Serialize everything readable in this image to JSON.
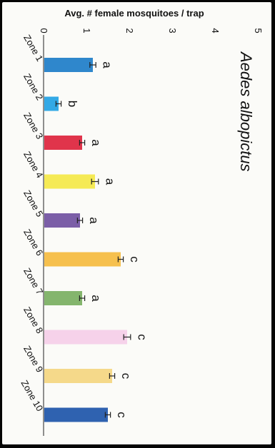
{
  "chart_data": {
    "type": "bar",
    "orientation": "horizontal",
    "title": "Aedes albopictus",
    "ylabel": "Avg. # female mosquitoes / trap",
    "xlabel": "",
    "ylim": [
      0,
      5
    ],
    "y_ticks": [
      "0",
      "1",
      "2",
      "3",
      "4",
      "5"
    ],
    "categories": [
      "Zone 1",
      "Zone 2",
      "Zone 3",
      "Zone 4",
      "Zone 5",
      "Zone 6",
      "Zone 7",
      "Zone 8",
      "Zone 9",
      "Zone 10"
    ],
    "values": [
      1.15,
      0.35,
      0.9,
      1.2,
      0.85,
      1.8,
      0.9,
      1.95,
      1.6,
      1.5
    ],
    "errors": [
      0.07,
      0.06,
      0.06,
      0.08,
      0.06,
      0.06,
      0.06,
      0.08,
      0.06,
      0.06
    ],
    "significance_letters": [
      "a",
      "b",
      "a",
      "a",
      "a",
      "c",
      "a",
      "c",
      "c",
      "c"
    ],
    "colors": [
      "#2f87cc",
      "#33a9e6",
      "#e0344b",
      "#f5ea55",
      "#7b5ea7",
      "#f6c04e",
      "#84b56d",
      "#f6d2ea",
      "#f5d98a",
      "#2f62b0"
    ],
    "grid": false,
    "legend": "none"
  }
}
